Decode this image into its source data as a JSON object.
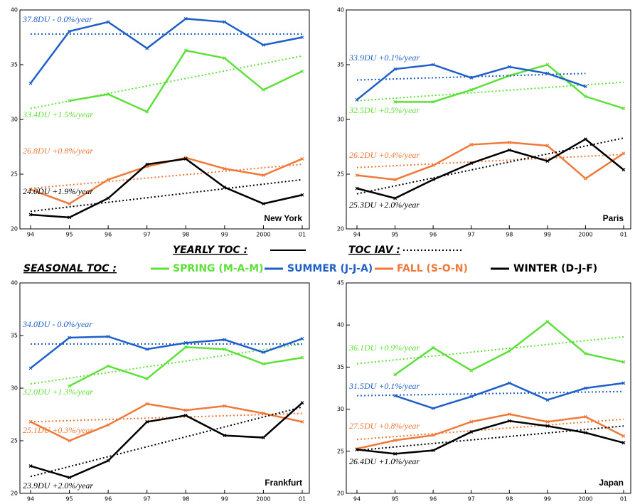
{
  "legend": {
    "yearly": "YEARLY  TOC :",
    "iav": "TOC IAV :",
    "seasonal": "SEASONAL TOC :",
    "series": [
      {
        "name": "SPRING (M-A-M)",
        "color": "#5ee03a"
      },
      {
        "name": "SUMMER (J-J-A)",
        "color": "#1f5fc8"
      },
      {
        "name": "FALL (S-O-N)",
        "color": "#f07838"
      },
      {
        "name": "WINTER (D-J-F)",
        "color": "#000000"
      }
    ]
  },
  "chart_data": [
    {
      "type": "line",
      "title": "New York",
      "categories": [
        "94",
        "95",
        "96",
        "97",
        "98",
        "99",
        "2000",
        "01"
      ],
      "ylim": [
        20,
        40
      ],
      "yticks": [
        20,
        25,
        30,
        35,
        40
      ],
      "series": [
        {
          "color": "#5ee03a",
          "values": [
            null,
            31.7,
            32.3,
            30.7,
            36.3,
            35.6,
            32.7,
            34.4
          ],
          "trend": {
            "x": [
              "94",
              "01"
            ],
            "values": [
              31.0,
              35.8
            ]
          },
          "annotation": "33.4DU +1.5%/year"
        },
        {
          "color": "#1f5fc8",
          "values": [
            33.3,
            38.05,
            38.9,
            36.5,
            39.2,
            38.9,
            36.8,
            37.5
          ],
          "trend": {
            "x": [
              "94",
              "01"
            ],
            "values": [
              37.8,
              37.8
            ]
          },
          "annotation": "37.8DU - 0.0%/year"
        },
        {
          "color": "#f07838",
          "values": [
            23.6,
            22.3,
            24.5,
            25.7,
            26.5,
            25.5,
            24.9,
            26.4
          ],
          "trend": {
            "x": [
              "94",
              "01"
            ],
            "values": [
              23.7,
              25.9
            ]
          },
          "annotation": "26.8DU +0.8%/year"
        },
        {
          "color": "#000000",
          "values": [
            21.3,
            21.05,
            22.8,
            25.9,
            26.4,
            23.8,
            22.3,
            23.1
          ],
          "trend": {
            "x": [
              "94",
              "01"
            ],
            "values": [
              21.6,
              24.5
            ]
          },
          "annotation": "24.0DU +1.9%/year"
        }
      ]
    },
    {
      "type": "line",
      "title": "Paris",
      "categories": [
        "94",
        "95",
        "96",
        "97",
        "98",
        "99",
        "2000",
        "01"
      ],
      "ylim": [
        20,
        40
      ],
      "yticks": [
        20,
        25,
        30,
        35,
        40
      ],
      "series": [
        {
          "color": "#5ee03a",
          "values": [
            null,
            31.6,
            31.6,
            32.7,
            34.0,
            35.0,
            32.1,
            31.0
          ],
          "trend": {
            "x": [
              "94",
              "01"
            ],
            "values": [
              31.7,
              33.4
            ]
          },
          "annotation": "32.5DU +0.5%/year"
        },
        {
          "color": "#1f5fc8",
          "values": [
            31.8,
            34.6,
            35.0,
            33.8,
            34.8,
            34.2,
            33.0,
            null
          ],
          "trend": {
            "x": [
              "94",
              "2000"
            ],
            "values": [
              33.6,
              34.2
            ]
          },
          "annotation": "33.9DU +0.1%/year"
        },
        {
          "color": "#f07838",
          "values": [
            24.9,
            24.5,
            25.8,
            27.7,
            27.9,
            27.6,
            24.6,
            26.9
          ],
          "trend": {
            "x": [
              "94",
              "01"
            ],
            "values": [
              25.6,
              26.8
            ]
          },
          "annotation": "26.2DU +0.4%/year"
        },
        {
          "color": "#000000",
          "values": [
            23.7,
            22.8,
            24.5,
            26.0,
            27.2,
            26.2,
            28.2,
            25.4
          ],
          "trend": {
            "x": [
              "94",
              "01"
            ],
            "values": [
              23.2,
              28.3
            ]
          },
          "annotation": "25.3DU +2.0%/year"
        }
      ]
    },
    {
      "type": "line",
      "title": "Frankfurt",
      "categories": [
        "94",
        "95",
        "96",
        "97",
        "98",
        "99",
        "2000",
        "01"
      ],
      "ylim": [
        20,
        40
      ],
      "yticks": [
        20,
        25,
        30,
        35,
        40
      ],
      "series": [
        {
          "color": "#5ee03a",
          "values": [
            null,
            30.2,
            32.1,
            30.9,
            33.9,
            33.7,
            32.3,
            32.9
          ],
          "trend": {
            "x": [
              "94",
              "01"
            ],
            "values": [
              30.4,
              34.2
            ]
          },
          "annotation": "32.0DU +1.3%/year"
        },
        {
          "color": "#1f5fc8",
          "values": [
            31.9,
            34.8,
            34.9,
            33.7,
            34.3,
            34.6,
            33.4,
            34.7
          ],
          "trend": {
            "x": [
              "94",
              "01"
            ],
            "values": [
              34.2,
              34.2
            ]
          },
          "annotation": "34.0DU - 0.0%/year"
        },
        {
          "color": "#f07838",
          "values": [
            26.8,
            25.0,
            26.5,
            28.5,
            27.9,
            28.3,
            27.6,
            26.8
          ],
          "trend": {
            "x": [
              "94",
              "01"
            ],
            "values": [
              26.8,
              27.6
            ]
          },
          "annotation": "25.1DU +0.3%/year"
        },
        {
          "color": "#000000",
          "values": [
            22.6,
            21.5,
            23.1,
            26.8,
            27.4,
            25.5,
            25.3,
            28.6
          ],
          "trend": {
            "x": [
              "94",
              "01"
            ],
            "values": [
              21.6,
              28.2
            ]
          },
          "annotation": "23.9DU +2.0%/year"
        }
      ]
    },
    {
      "type": "line",
      "title": "Japan",
      "categories": [
        "94",
        "95",
        "96",
        "97",
        "98",
        "99",
        "2000",
        "01"
      ],
      "ylim": [
        20,
        45
      ],
      "yticks": [
        20,
        25,
        30,
        35,
        40,
        45
      ],
      "series": [
        {
          "color": "#5ee03a",
          "values": [
            null,
            34.1,
            37.3,
            34.6,
            36.9,
            40.4,
            36.6,
            35.6
          ],
          "trend": {
            "x": [
              "94",
              "01"
            ],
            "values": [
              35.4,
              38.6
            ]
          },
          "annotation": "36.1DU +0.9%/year"
        },
        {
          "color": "#1f5fc8",
          "values": [
            null,
            31.6,
            30.1,
            31.5,
            33.1,
            31.1,
            32.5,
            33.1
          ],
          "trend": {
            "x": [
              "94",
              "01"
            ],
            "values": [
              31.6,
              32.1
            ]
          },
          "annotation": "31.5DU +0.1%/year"
        },
        {
          "color": "#f07838",
          "values": [
            25.3,
            26.3,
            26.9,
            28.5,
            29.4,
            28.5,
            29.1,
            26.8
          ],
          "trend": {
            "x": [
              "94",
              "01"
            ],
            "values": [
              26.4,
              28.8
            ]
          },
          "annotation": "27.5DU +0.8%/year"
        },
        {
          "color": "#000000",
          "values": [
            25.2,
            24.7,
            25.1,
            27.3,
            28.6,
            28.0,
            27.2,
            26.0
          ],
          "trend": {
            "x": [
              "94",
              "01"
            ],
            "values": [
              25.1,
              28.0
            ]
          },
          "annotation": "26.4DU +1.0%/year"
        }
      ]
    }
  ]
}
